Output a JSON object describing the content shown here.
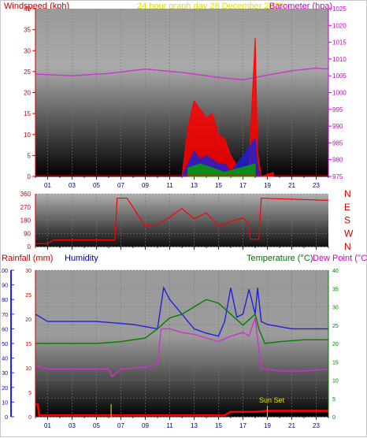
{
  "header": {
    "left_title": "Windspeed (kph)",
    "center_title": "24 hour graph day 28 December 2025",
    "right_title": "Barometer (hpa)"
  },
  "colors": {
    "wind_gust": "#ff0000",
    "wind_avg": "#2020d0",
    "wind_low": "#00a000",
    "barometer": "#cc33cc",
    "direction": "#ff0000",
    "humidity": "#2020e0",
    "temperature": "#008000",
    "dew_point": "#cc33cc",
    "rainfall": "#ff0000",
    "sunset": "#c8c800",
    "grid_bg_top": "#b8b8b8",
    "grid_bg_bottom": "#000000",
    "title_red": "#c00000",
    "title_yellow": "#e0e000",
    "title_magenta": "#cc00cc",
    "title_blue": "#000099",
    "title_green": "#007000"
  },
  "x_axis": {
    "tick_labels": [
      "01",
      "03",
      "05",
      "07",
      "09",
      "11",
      "13",
      "15",
      "17",
      "19",
      "21",
      "23"
    ]
  },
  "bottom_labels": {
    "rainfall": "Rainfall (mm)",
    "humidity": "Humidity",
    "temperature": "Temperature (°C)",
    "dew_point": "Dew Point (°C)",
    "sunset": "Sun Set"
  },
  "chart_data": [
    {
      "type": "line",
      "panel": "wind_barometer",
      "y_left_ticks": [
        "0",
        "5",
        "10",
        "15",
        "20",
        "25",
        "30",
        "35",
        "40"
      ],
      "y_right_ticks": [
        "975",
        "980",
        "985",
        "990",
        "995",
        "1000",
        "1005",
        "1010",
        "1015",
        "1020",
        "1025"
      ],
      "ylim_left": [
        0,
        40
      ],
      "ylim_right": [
        975,
        1025
      ],
      "x": [
        0,
        3,
        6,
        9,
        12,
        15,
        17,
        18,
        19,
        21,
        23,
        24
      ],
      "series": [
        {
          "name": "Barometer",
          "axis": "right",
          "values": [
            1005.5,
            1005,
            1005.7,
            1007,
            1006,
            1004.5,
            1003.8,
            1004.5,
            1005.2,
            1006.5,
            1007.3,
            1007
          ]
        },
        {
          "name": "Gust",
          "axis": "left",
          "x": [
            12.0,
            12.5,
            13.0,
            13.5,
            14.0,
            14.5,
            15.0,
            15.5,
            16.0,
            17.0,
            17.5,
            18.0,
            18.2,
            18.5,
            19.5
          ],
          "values": [
            0,
            12,
            18,
            16,
            14,
            15,
            10,
            9,
            5,
            0,
            3,
            33,
            6,
            0,
            1
          ]
        },
        {
          "name": "Average",
          "axis": "left",
          "x": [
            12.0,
            12.5,
            13.0,
            13.5,
            14.0,
            14.5,
            15.0,
            15.5,
            16.0,
            18.0,
            18.2,
            18.5
          ],
          "values": [
            0,
            3,
            6,
            4,
            5,
            4,
            3,
            3,
            1,
            9,
            2,
            0
          ]
        },
        {
          "name": "Low",
          "axis": "left",
          "x": [
            12.5,
            13.5,
            14.5,
            15.5,
            18.0
          ],
          "values": [
            2,
            3,
            2,
            1,
            3
          ]
        }
      ]
    },
    {
      "type": "line",
      "panel": "wind_direction",
      "y_ticks": [
        "0",
        "90",
        "180",
        "270",
        "360"
      ],
      "y_right_labels": [
        "N",
        "W",
        "S",
        "E",
        "N"
      ],
      "ylim": [
        0,
        360
      ],
      "x": [
        0,
        0.3,
        1,
        1.5,
        6.5,
        6.7,
        7.5,
        9,
        10,
        11,
        12,
        13,
        14,
        15,
        16,
        17,
        17.4,
        17.6,
        18.3,
        18.5,
        24
      ],
      "values": [
        20,
        20,
        20,
        45,
        45,
        330,
        330,
        140,
        150,
        200,
        260,
        190,
        230,
        140,
        170,
        195,
        165,
        50,
        50,
        330,
        315
      ]
    },
    {
      "type": "line",
      "panel": "temperature_humidity",
      "y_left_humidity_ticks": [
        "0",
        "10",
        "20",
        "30",
        "40",
        "50",
        "60",
        "70",
        "80",
        "90",
        "100"
      ],
      "y_left_rain_ticks": [
        "0",
        "5",
        "10",
        "15",
        "20",
        "25",
        "30"
      ],
      "y_right_ticks": [
        "0",
        "5",
        "10",
        "15",
        "20",
        "25",
        "30",
        "35",
        "40"
      ],
      "ylim_humidity": [
        0,
        100
      ],
      "ylim_rain": [
        0,
        30
      ],
      "ylim_temp": [
        0,
        40
      ],
      "series": [
        {
          "name": "Humidity",
          "axis": "humidity",
          "x": [
            0,
            1,
            2,
            5,
            8,
            10,
            10.5,
            11,
            12,
            13,
            14,
            15,
            15.5,
            16,
            16.5,
            17,
            17.5,
            18,
            18.2,
            18.5,
            19,
            21,
            24
          ],
          "values": [
            70,
            65,
            65,
            65,
            63,
            60,
            88,
            80,
            70,
            60,
            57,
            55,
            65,
            88,
            68,
            70,
            87,
            70,
            88,
            65,
            63,
            60,
            60
          ]
        },
        {
          "name": "Temperature",
          "axis": "temp",
          "x": [
            0,
            2,
            5,
            7,
            9,
            10,
            11,
            12,
            13,
            14,
            15,
            16,
            17,
            18,
            18.3,
            18.8,
            20,
            22,
            24
          ],
          "values": [
            20,
            20,
            20,
            20.5,
            21.5,
            24,
            27,
            28,
            30,
            32,
            31,
            28,
            25,
            28,
            24,
            20,
            20.5,
            21,
            21
          ]
        },
        {
          "name": "Dew Point",
          "axis": "temp",
          "x": [
            0,
            1,
            3,
            5,
            6,
            6.3,
            7,
            9,
            10,
            10.3,
            11,
            12,
            13,
            14,
            15,
            16,
            17,
            17.5,
            18,
            18.5,
            19,
            20,
            22,
            24
          ],
          "values": [
            14,
            13,
            13,
            13,
            13,
            11,
            13,
            13.5,
            14.5,
            24,
            24,
            23,
            22.5,
            21.5,
            20.5,
            22,
            23,
            22,
            27,
            13,
            13,
            12.5,
            12.5,
            13
          ]
        },
        {
          "name": "Rainfall",
          "axis": "rain",
          "x": [
            0,
            0.2,
            0.3,
            15.5,
            16,
            18,
            19,
            24
          ],
          "values": [
            2.5,
            2.5,
            0.3,
            0.3,
            1,
            1,
            1.2,
            1.2
          ]
        }
      ],
      "annotations": [
        {
          "label": "Sun Set",
          "x": 19
        }
      ]
    }
  ]
}
